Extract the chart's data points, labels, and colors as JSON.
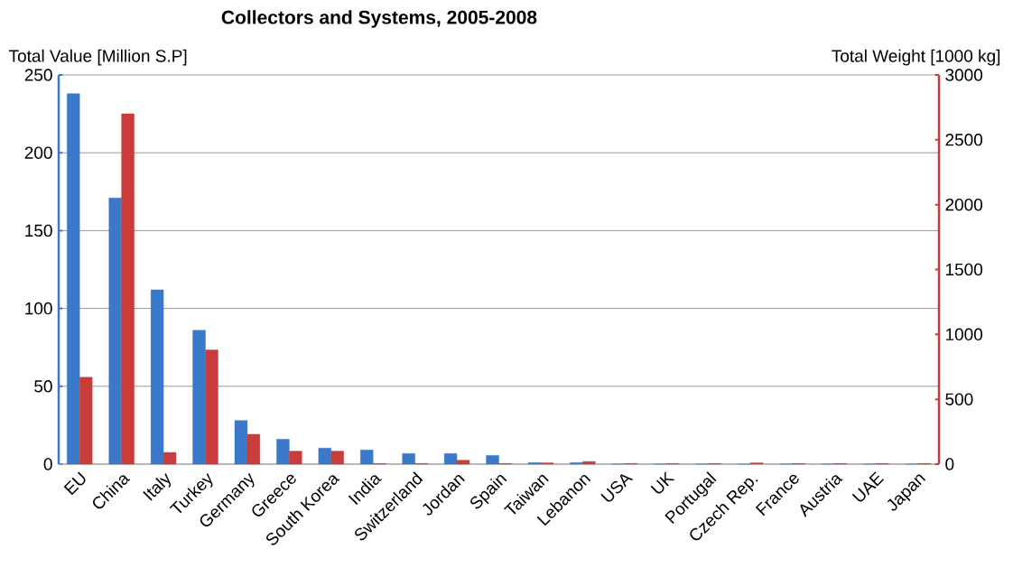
{
  "chart_data": {
    "type": "bar",
    "title": "Collectors and Systems, 2005-2008",
    "ylabel": "Total Value [Million S.P]",
    "y2label": "Total Weight [1000 kg]",
    "categories": [
      "EU",
      "China",
      "Italy",
      "Turkey",
      "Germany",
      "Greece",
      "South Korea",
      "India",
      "Switzerland",
      "Jordan",
      "Spain",
      "Taiwan",
      "Lebanon",
      "USA",
      "UK",
      "Portugal",
      "Czech Rep.",
      "France",
      "Austria",
      "UAE",
      "Japan"
    ],
    "series": [
      {
        "color": "#3a78c9",
        "values": [
          238,
          171,
          112,
          86,
          28,
          16,
          10.3,
          9.1,
          6.8,
          6.8,
          5.6,
          1,
          1,
          0,
          0,
          0,
          0,
          0,
          0,
          0,
          0
        ]
      },
      {
        "color": "#c83c3c",
        "axis": "y2",
        "values": [
          670,
          2700,
          90,
          880,
          230,
          100,
          100,
          5,
          5,
          30,
          5,
          10,
          20,
          5,
          5,
          5,
          10,
          5,
          5,
          5,
          5
        ]
      }
    ],
    "ylim": [
      0,
      250
    ],
    "yticks": [
      0,
      50,
      100,
      150,
      200,
      250
    ],
    "y2lim": [
      0,
      3000
    ],
    "y2ticks": [
      0,
      500,
      1000,
      1500,
      2000,
      2500,
      3000
    ],
    "grid": "y"
  }
}
